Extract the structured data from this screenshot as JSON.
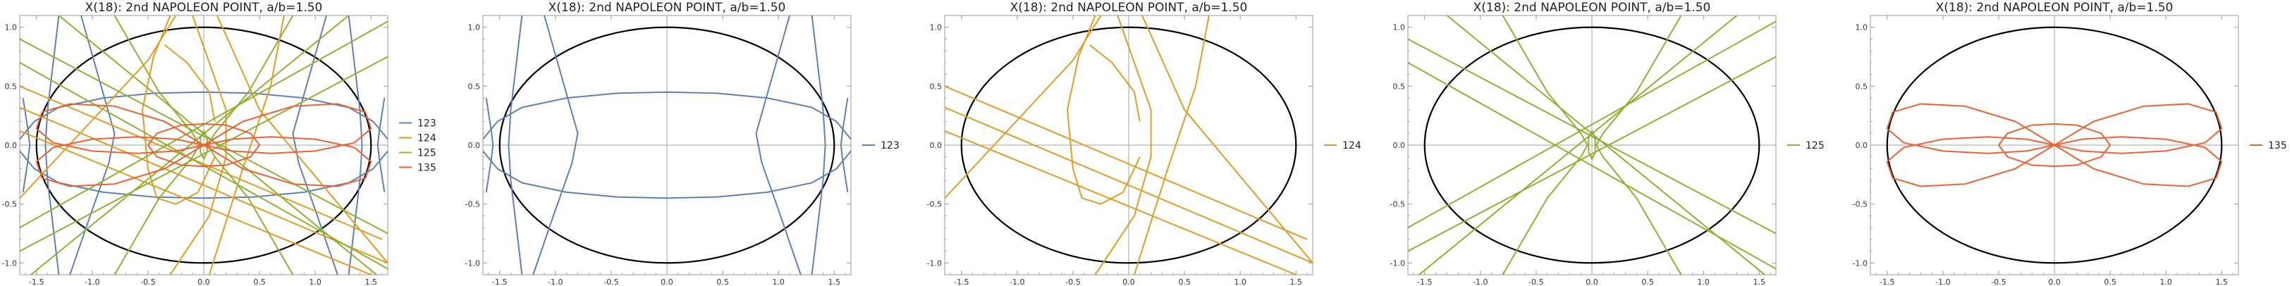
{
  "colors": {
    "s123": "#5e81b5",
    "s124": "#e19c24",
    "s125": "#8fb032",
    "s135": "#eb6235",
    "ellipse": "#000000",
    "frame": "#9a9a9a",
    "axis": "#a0a0a0",
    "tick_text": "#333333"
  },
  "chart_data": [
    {
      "type": "line",
      "title": "X(18): 2nd NAPOLEON POINT, a/b=1.50",
      "xlim": [
        -1.65,
        1.65
      ],
      "ylim": [
        -1.1,
        1.1
      ],
      "xticks": [
        -1.5,
        -1.0,
        -0.5,
        0.0,
        0.5,
        1.0,
        1.5
      ],
      "xtick_labels": [
        "-1.5",
        "-1.0",
        "-0.5",
        "0.0",
        "0.5",
        "1.0",
        "1.5"
      ],
      "yticks": [
        -1.0,
        -0.5,
        0.0,
        0.5,
        1.0
      ],
      "ytick_labels": [
        "-1.0",
        "-0.5",
        "0.0",
        "0.5",
        "1.0"
      ],
      "ellipse": {
        "a": 1.5,
        "b": 1.0
      },
      "legend": [
        "123",
        "124",
        "125",
        "135"
      ],
      "series": [
        "123",
        "124",
        "125",
        "135"
      ]
    },
    {
      "type": "line",
      "title": "X(18): 2nd NAPOLEON POINT, a/b=1.50",
      "xlim": [
        -1.65,
        1.65
      ],
      "ylim": [
        -1.1,
        1.1
      ],
      "xticks": [
        -1.5,
        -1.0,
        -0.5,
        0.0,
        0.5,
        1.0,
        1.5
      ],
      "xtick_labels": [
        "-1.5",
        "-1.0",
        "-0.5",
        "0.0",
        "0.5",
        "1.0",
        "1.5"
      ],
      "yticks": [
        -1.0,
        -0.5,
        0.0,
        0.5,
        1.0
      ],
      "ytick_labels": [
        "-1.0",
        "-0.5",
        "0.0",
        "0.5",
        "1.0"
      ],
      "ellipse": {
        "a": 1.5,
        "b": 1.0
      },
      "legend": [
        "123"
      ],
      "series": [
        "123"
      ]
    },
    {
      "type": "line",
      "title": "X(18): 2nd NAPOLEON POINT, a/b=1.50",
      "xlim": [
        -1.65,
        1.65
      ],
      "ylim": [
        -1.1,
        1.1
      ],
      "xticks": [
        -1.5,
        -1.0,
        -0.5,
        0.0,
        0.5,
        1.0,
        1.5
      ],
      "xtick_labels": [
        "-1.5",
        "-1.0",
        "-0.5",
        "0.0",
        "0.5",
        "1.0",
        "1.5"
      ],
      "yticks": [
        -1.0,
        -0.5,
        0.0,
        0.5,
        1.0
      ],
      "ytick_labels": [
        "-1.0",
        "-0.5",
        "0.0",
        "0.5",
        "1.0"
      ],
      "ellipse": {
        "a": 1.5,
        "b": 1.0
      },
      "legend": [
        "124"
      ],
      "series": [
        "124"
      ]
    },
    {
      "type": "line",
      "title": "X(18): 2nd NAPOLEON POINT, a/b=1.50",
      "xlim": [
        -1.65,
        1.65
      ],
      "ylim": [
        -1.1,
        1.1
      ],
      "xticks": [
        -1.5,
        -1.0,
        -0.5,
        0.0,
        0.5,
        1.0,
        1.5
      ],
      "xtick_labels": [
        "-1.5",
        "-1.0",
        "-0.5",
        "0.0",
        "0.5",
        "1.0",
        "1.5"
      ],
      "yticks": [
        -1.0,
        -0.5,
        0.0,
        0.5,
        1.0
      ],
      "ytick_labels": [
        "-1.0",
        "-0.5",
        "0.0",
        "0.5",
        "1.0"
      ],
      "ellipse": {
        "a": 1.5,
        "b": 1.0
      },
      "legend": [
        "125"
      ],
      "series": [
        "125"
      ]
    },
    {
      "type": "line",
      "title": "X(18): 2nd NAPOLEON POINT, a/b=1.50",
      "xlim": [
        -1.65,
        1.65
      ],
      "ylim": [
        -1.1,
        1.1
      ],
      "xticks": [
        -1.5,
        -1.0,
        -0.5,
        0.0,
        0.5,
        1.0,
        1.5
      ],
      "xtick_labels": [
        "-1.5",
        "-1.0",
        "-0.5",
        "0.0",
        "0.5",
        "1.0",
        "1.5"
      ],
      "yticks": [
        -1.0,
        -0.5,
        0.0,
        0.5,
        1.0
      ],
      "ytick_labels": [
        "-1.0",
        "-0.5",
        "0.0",
        "0.5",
        "1.0"
      ],
      "ellipse": {
        "a": 1.5,
        "b": 1.0
      },
      "legend": [
        "135"
      ],
      "series": [
        "135"
      ]
    }
  ],
  "curves": {
    "123": [
      [
        [
          -1.62,
          0.4
        ],
        [
          -1.575,
          0.12
        ],
        [
          -1.56,
          0
        ],
        [
          -1.575,
          -0.12
        ],
        [
          -1.62,
          -0.4
        ]
      ],
      [
        [
          1.62,
          0.4
        ],
        [
          1.575,
          0.12
        ],
        [
          1.56,
          0
        ],
        [
          1.575,
          -0.12
        ],
        [
          1.62,
          -0.4
        ]
      ],
      [
        [
          -1.65,
          0.05
        ],
        [
          -1.52,
          0.2
        ],
        [
          -1.3,
          0.32
        ],
        [
          -0.9,
          0.4
        ],
        [
          -0.45,
          0.44
        ],
        [
          0,
          0.45
        ],
        [
          0.45,
          0.44
        ],
        [
          0.9,
          0.4
        ],
        [
          1.3,
          0.32
        ],
        [
          1.52,
          0.2
        ],
        [
          1.65,
          0.05
        ]
      ],
      [
        [
          -1.65,
          -0.05
        ],
        [
          -1.52,
          -0.2
        ],
        [
          -1.3,
          -0.32
        ],
        [
          -0.9,
          -0.4
        ],
        [
          -0.45,
          -0.44
        ],
        [
          0,
          -0.45
        ],
        [
          0.45,
          -0.44
        ],
        [
          0.9,
          -0.4
        ],
        [
          1.3,
          -0.32
        ],
        [
          1.52,
          -0.2
        ],
        [
          1.65,
          -0.05
        ]
      ],
      [
        [
          -1.3,
          1.1
        ],
        [
          -1.35,
          0.7
        ],
        [
          -1.4,
          0.3
        ],
        [
          -1.42,
          0
        ],
        [
          -1.4,
          -0.3
        ],
        [
          -1.35,
          -0.7
        ],
        [
          -1.3,
          -1.1
        ]
      ],
      [
        [
          1.3,
          1.1
        ],
        [
          1.35,
          0.7
        ],
        [
          1.4,
          0.3
        ],
        [
          1.42,
          0
        ],
        [
          1.4,
          -0.3
        ],
        [
          1.35,
          -0.7
        ],
        [
          1.3,
          -1.1
        ]
      ],
      [
        [
          -1.2,
          -1.1
        ],
        [
          -1.0,
          -0.55
        ],
        [
          -0.85,
          -0.15
        ],
        [
          -0.8,
          0.1
        ],
        [
          -0.95,
          0.6
        ],
        [
          -1.1,
          1.1
        ]
      ],
      [
        [
          1.2,
          -1.1
        ],
        [
          1.0,
          -0.55
        ],
        [
          0.85,
          -0.15
        ],
        [
          0.8,
          0.1
        ],
        [
          0.95,
          0.6
        ],
        [
          1.1,
          1.1
        ]
      ]
    ],
    "124": [
      [
        [
          -1.65,
          0.5
        ],
        [
          1.6,
          -0.8
        ]
      ],
      [
        [
          -1.65,
          0.32
        ],
        [
          1.65,
          -1.0
        ]
      ],
      [
        [
          -1.65,
          0.12
        ],
        [
          1.5,
          -1.1
        ]
      ],
      [
        [
          -1.65,
          -0.45
        ],
        [
          -0.5,
          0.72
        ],
        [
          -0.25,
          1.1
        ]
      ],
      [
        [
          0.12,
          1.1
        ],
        [
          0.5,
          0.3
        ],
        [
          1.65,
          -1.0
        ]
      ],
      [
        [
          0.05,
          -1.1
        ],
        [
          0.35,
          -0.2
        ],
        [
          0.6,
          0.5
        ],
        [
          0.72,
          1.1
        ]
      ],
      [
        [
          -0.3,
          1.1
        ],
        [
          -0.45,
          0.75
        ],
        [
          -0.55,
          0.3
        ],
        [
          -0.5,
          -0.2
        ],
        [
          -0.42,
          -0.45
        ],
        [
          -0.25,
          -0.5
        ],
        [
          -0.05,
          -0.4
        ],
        [
          0.1,
          -0.1
        ]
      ],
      [
        [
          -0.35,
          0.85
        ],
        [
          -0.15,
          0.7
        ],
        [
          0.05,
          0.45
        ],
        [
          0.1,
          0.2
        ]
      ],
      [
        [
          -0.1,
          1.1
        ],
        [
          0.05,
          0.7
        ],
        [
          0.2,
          0.3
        ],
        [
          0.2,
          -0.1
        ],
        [
          0.05,
          -0.6
        ],
        [
          -0.3,
          -1.1
        ]
      ]
    ],
    "125": [
      [
        [
          -1.65,
          0.9
        ],
        [
          1.65,
          -0.75
        ]
      ],
      [
        [
          -1.65,
          0.7
        ],
        [
          1.65,
          -1.05
        ]
      ],
      [
        [
          -1.65,
          -0.9
        ],
        [
          1.65,
          0.75
        ]
      ],
      [
        [
          -1.65,
          -0.7
        ],
        [
          1.65,
          1.05
        ]
      ],
      [
        [
          -1.3,
          1.1
        ],
        [
          1.55,
          -1.1
        ]
      ],
      [
        [
          -1.55,
          -1.1
        ],
        [
          1.3,
          1.1
        ]
      ],
      [
        [
          -0.8,
          -1.1
        ],
        [
          -0.4,
          -0.45
        ],
        [
          -0.1,
          -0.1
        ],
        [
          -0.04,
          0
        ],
        [
          -0.1,
          0.1
        ],
        [
          -0.4,
          0.45
        ],
        [
          -0.8,
          1.1
        ]
      ],
      [
        [
          0.8,
          -1.1
        ],
        [
          0.4,
          -0.45
        ],
        [
          0.1,
          -0.1
        ],
        [
          0.04,
          0
        ],
        [
          0.1,
          0.1
        ],
        [
          0.4,
          0.45
        ],
        [
          0.8,
          1.1
        ]
      ],
      [
        [
          0,
          -0.12
        ],
        [
          0.03,
          -0.06
        ],
        [
          0.03,
          0.06
        ],
        [
          0,
          0.12
        ],
        [
          -0.03,
          0.06
        ],
        [
          -0.03,
          -0.06
        ],
        [
          0,
          -0.12
        ]
      ]
    ],
    "135": [
      [
        [
          0,
          0
        ],
        [
          0.35,
          0.2
        ],
        [
          0.8,
          0.33
        ],
        [
          1.2,
          0.35
        ],
        [
          1.45,
          0.28
        ],
        [
          1.5,
          0.14
        ],
        [
          1.35,
          0.02
        ],
        [
          1.0,
          -0.05
        ],
        [
          0.6,
          -0.07
        ],
        [
          0.25,
          -0.05
        ],
        [
          0,
          0
        ]
      ],
      [
        [
          0,
          0
        ],
        [
          -0.35,
          0.2
        ],
        [
          -0.8,
          0.33
        ],
        [
          -1.2,
          0.35
        ],
        [
          -1.45,
          0.28
        ],
        [
          -1.5,
          0.14
        ],
        [
          -1.35,
          0.02
        ],
        [
          -1.0,
          -0.05
        ],
        [
          -0.6,
          -0.07
        ],
        [
          -0.25,
          -0.05
        ],
        [
          0,
          0
        ]
      ],
      [
        [
          0,
          0
        ],
        [
          0.35,
          -0.2
        ],
        [
          0.8,
          -0.33
        ],
        [
          1.2,
          -0.35
        ],
        [
          1.45,
          -0.28
        ],
        [
          1.5,
          -0.14
        ],
        [
          1.35,
          -0.02
        ],
        [
          1.0,
          0.05
        ],
        [
          0.6,
          0.07
        ],
        [
          0.25,
          0.05
        ],
        [
          0,
          0
        ]
      ],
      [
        [
          0,
          0
        ],
        [
          -0.35,
          -0.2
        ],
        [
          -0.8,
          -0.33
        ],
        [
          -1.2,
          -0.35
        ],
        [
          -1.45,
          -0.28
        ],
        [
          -1.5,
          -0.14
        ],
        [
          -1.35,
          -0.02
        ],
        [
          -1.0,
          0.05
        ],
        [
          -0.6,
          0.07
        ],
        [
          -0.25,
          0.05
        ],
        [
          0,
          0
        ]
      ],
      [
        [
          -0.5,
          0
        ],
        [
          -0.42,
          0.1
        ],
        [
          -0.2,
          0.17
        ],
        [
          0,
          0.18
        ],
        [
          0.2,
          0.17
        ],
        [
          0.42,
          0.1
        ],
        [
          0.5,
          0
        ],
        [
          0.42,
          -0.1
        ],
        [
          0.2,
          -0.17
        ],
        [
          0,
          -0.18
        ],
        [
          -0.2,
          -0.17
        ],
        [
          -0.42,
          -0.1
        ],
        [
          -0.5,
          0
        ]
      ]
    ]
  }
}
